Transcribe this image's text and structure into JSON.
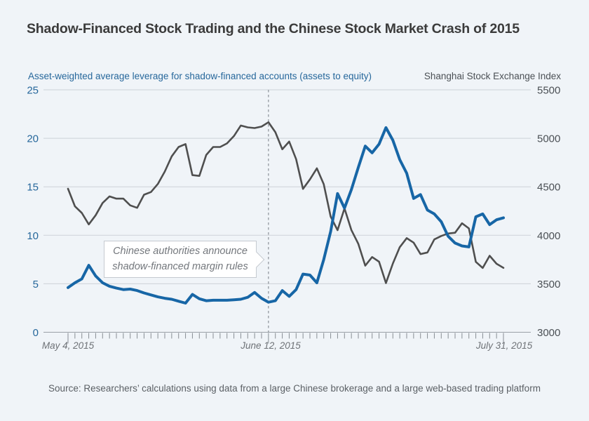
{
  "header": {
    "title": "Shadow-Financed Stock Trading and the Chinese Stock Market Crash of 2015"
  },
  "chart": {
    "left_axis_title": "Asset-weighted average leverage for shadow-financed accounts (assets to equity)",
    "right_axis_title": "Shanghai Stock Exchange Index",
    "annotation": {
      "line1": "Chinese authorities announce",
      "line2": "shadow-financed margin rules"
    },
    "x_labels": {
      "start": "May 4, 2015",
      "event": "June 12, 2015",
      "end": "July 31, 2015"
    }
  },
  "source": {
    "text": "Source: Researchers’ calculations using data from a large Chinese brokerage and a large web-based trading platform"
  },
  "chart_data": {
    "type": "line",
    "title": "Shadow-Financed Stock Trading and the Chinese Stock Market Crash of 2015",
    "x_axis": {
      "unit": "trading day, May 4 2015 – July 31 2015",
      "tick_count": 64,
      "labeled_ticks": [
        {
          "index": 0,
          "label": "May 4, 2015"
        },
        {
          "index": 29,
          "label": "June 12, 2015"
        },
        {
          "index": 63,
          "label": "July 31, 2015"
        }
      ],
      "event_line_index": 29,
      "event_label": "June 12, 2015"
    },
    "left_axis": {
      "title": "Asset-weighted average leverage for shadow-financed accounts (assets to equity)",
      "range": [
        0,
        25
      ],
      "ticks": [
        0,
        5,
        10,
        15,
        20,
        25
      ],
      "color": "#26679b"
    },
    "right_axis": {
      "title": "Shanghai Stock Exchange Index",
      "range": [
        3000,
        5500
      ],
      "ticks": [
        3000,
        3500,
        4000,
        4500,
        5000,
        5500
      ],
      "color": "#4b5055"
    },
    "grid": "horizontal",
    "legend": "none",
    "series": [
      {
        "name": "Asset-weighted average leverage (assets to equity)",
        "axis": "left",
        "color": "#1766a6",
        "width": 4,
        "values": [
          4.6,
          5.1,
          5.5,
          6.9,
          5.8,
          5.1,
          4.75,
          4.55,
          4.4,
          4.45,
          4.3,
          4.05,
          3.85,
          3.65,
          3.5,
          3.4,
          3.2,
          3.0,
          3.9,
          3.45,
          3.25,
          3.3,
          3.3,
          3.3,
          3.35,
          3.4,
          3.6,
          4.1,
          3.5,
          3.1,
          3.25,
          4.3,
          3.7,
          4.4,
          6.0,
          5.9,
          5.1,
          7.5,
          10.4,
          14.3,
          12.8,
          14.7,
          17.0,
          19.2,
          18.5,
          19.4,
          21.1,
          19.8,
          17.8,
          16.4,
          13.8,
          14.2,
          12.6,
          12.2,
          11.4,
          9.9,
          9.2,
          8.9,
          8.8,
          11.9,
          12.2,
          11.1,
          11.6,
          11.8
        ]
      },
      {
        "name": "Shanghai Stock Exchange Index",
        "axis": "right",
        "color": "#4f4f4f",
        "width": 2.6,
        "values": [
          4480,
          4298,
          4230,
          4112,
          4206,
          4333,
          4401,
          4378,
          4378,
          4308,
          4283,
          4418,
          4446,
          4529,
          4657,
          4814,
          4910,
          4941,
          4620,
          4612,
          4828,
          4910,
          4910,
          4947,
          5023,
          5132,
          5113,
          5106,
          5121,
          5166,
          5063,
          4887,
          4967,
          4785,
          4478,
          4576,
          4690,
          4527,
          4192,
          4053,
          4277,
          4054,
          3912,
          3687,
          3776,
          3727,
          3507,
          3709,
          3877,
          3970,
          3924,
          3806,
          3823,
          3957,
          3993,
          4018,
          4026,
          4124,
          4071,
          3726,
          3663,
          3789,
          3706,
          3664
        ]
      }
    ],
    "annotation": {
      "text": "Chinese authorities announce shadow-financed margin rules",
      "points_to": "June 12, 2015"
    }
  }
}
